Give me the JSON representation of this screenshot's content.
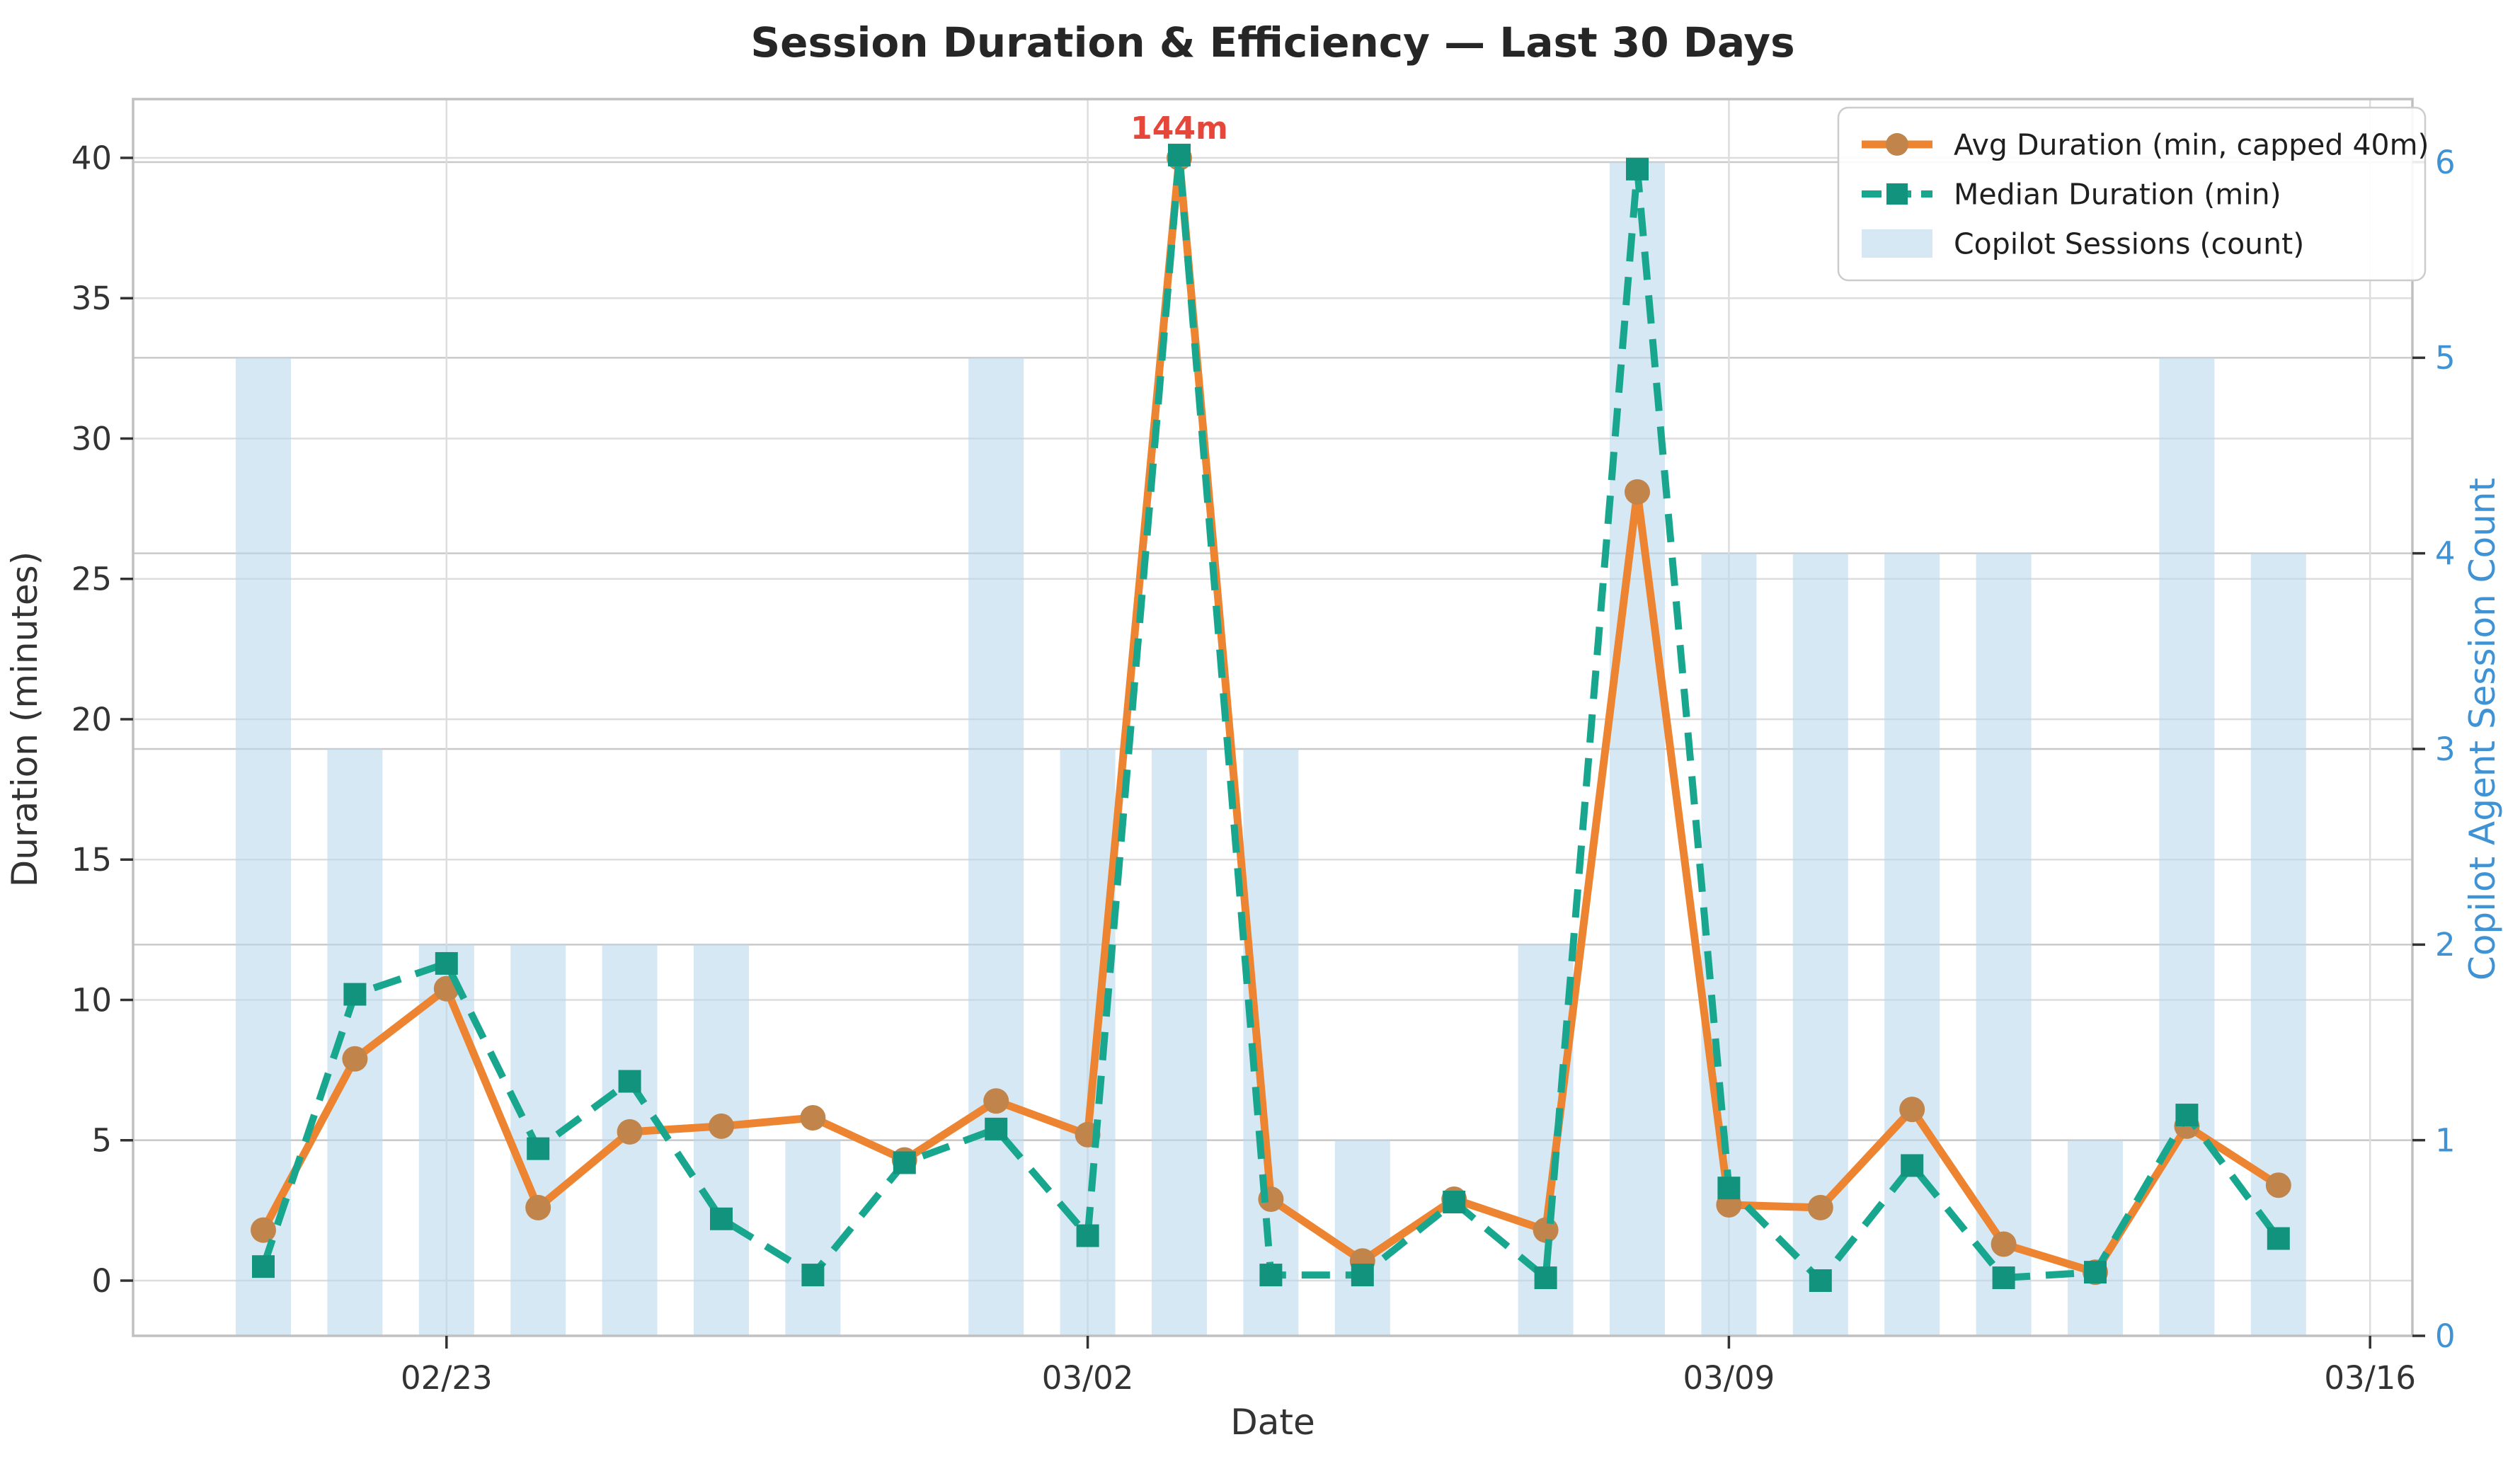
{
  "chart_data": {
    "type": "line+bar",
    "title": "Session Duration & Efficiency — Last 30 Days",
    "x": {
      "axis_label": "Date",
      "dates": [
        "02/21",
        "02/22",
        "02/23",
        "02/24",
        "02/25",
        "02/26",
        "02/27",
        "02/28",
        "03/01",
        "03/02",
        "03/03",
        "03/04",
        "03/05",
        "03/06",
        "03/07",
        "03/08",
        "03/09",
        "03/10",
        "03/11",
        "03/12",
        "03/13",
        "03/14",
        "03/15"
      ],
      "tick_labels": [
        "02/23",
        "03/02",
        "03/09",
        "03/16"
      ],
      "tick_day_indices": [
        2,
        9,
        16,
        23
      ]
    },
    "left_axis": {
      "label": "Duration (minutes)",
      "tick_labels": [
        "0",
        "5",
        "10",
        "15",
        "20",
        "25",
        "30",
        "35",
        "40"
      ],
      "ticks": [
        0,
        5,
        10,
        15,
        20,
        25,
        30,
        35,
        40
      ],
      "range": [
        0,
        40
      ]
    },
    "right_axis": {
      "label": "Copilot Agent Session Count",
      "tick_labels": [
        "0",
        "1",
        "2",
        "3",
        "4",
        "5",
        "6"
      ],
      "ticks": [
        0,
        1,
        2,
        3,
        4,
        5,
        6
      ],
      "range": [
        0,
        6
      ]
    },
    "series": [
      {
        "name": "Avg Duration (min, capped 40m)",
        "type": "line",
        "style": "solid",
        "marker": "circle",
        "values": [
          1.8,
          7.9,
          10.4,
          2.6,
          5.3,
          5.5,
          5.8,
          4.3,
          6.4,
          5.2,
          40.0,
          2.9,
          0.7,
          2.9,
          1.8,
          28.1,
          2.7,
          2.6,
          6.1,
          1.3,
          0.3,
          5.5,
          3.4
        ]
      },
      {
        "name": "Median Duration (min)",
        "type": "line",
        "style": "dashed",
        "marker": "square",
        "values": [
          0.5,
          10.2,
          11.3,
          4.7,
          7.1,
          2.2,
          0.2,
          4.2,
          5.4,
          1.6,
          40.1,
          0.2,
          0.2,
          2.8,
          0.1,
          39.6,
          3.3,
          0.0,
          4.1,
          0.1,
          0.3,
          5.9,
          1.5
        ]
      },
      {
        "name": "Copilot Sessions (count)",
        "type": "bar",
        "values": [
          5,
          3,
          2,
          2,
          2,
          2,
          1,
          0,
          5,
          3,
          3,
          3,
          1,
          0,
          2,
          6,
          4,
          4,
          4,
          4,
          1,
          5,
          4
        ]
      }
    ],
    "annotation": {
      "text": "144m",
      "day_index": 10
    },
    "legend": {
      "position": "top-right"
    },
    "grid": "both-axes",
    "colors": {
      "avg_line": "#ed8431",
      "avg_marker": "#c1854b",
      "median_line": "#18a78e",
      "median_marker": "#12937d",
      "bar_fill": "#bcd8ee",
      "right_axis_blue": "#3f93d5",
      "annotation_red": "#e5483b",
      "title_text": "#262626",
      "tick_text": "#333333",
      "grid_minor": "#dddddd",
      "grid_count": "#c9c9c9",
      "spine": "#c0c0c0"
    }
  }
}
